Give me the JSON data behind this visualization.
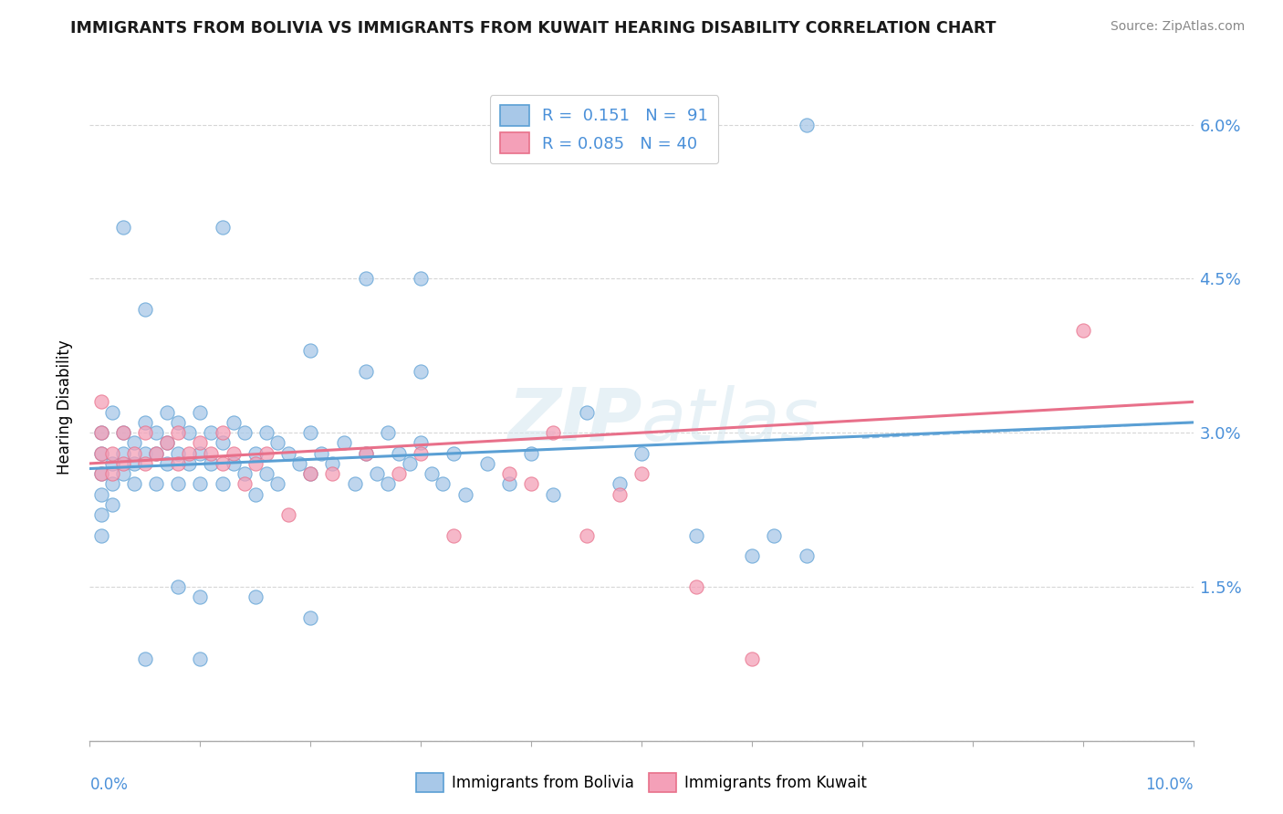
{
  "title": "IMMIGRANTS FROM BOLIVIA VS IMMIGRANTS FROM KUWAIT HEARING DISABILITY CORRELATION CHART",
  "source": "Source: ZipAtlas.com",
  "ylabel": "Hearing Disability",
  "xmin": 0.0,
  "xmax": 0.1,
  "ymin": 0.0,
  "ymax": 0.065,
  "yticks": [
    0.0,
    0.015,
    0.03,
    0.045,
    0.06
  ],
  "ytick_labels": [
    "",
    "1.5%",
    "3.0%",
    "4.5%",
    "6.0%"
  ],
  "color_bolivia": "#a8c8e8",
  "color_kuwait": "#f4a0b8",
  "color_bolivia_line": "#5a9fd4",
  "color_kuwait_line": "#e8708a",
  "watermark_text": "ZIPatlas",
  "bolivia_x": [
    0.001,
    0.001,
    0.001,
    0.001,
    0.001,
    0.001,
    0.002,
    0.002,
    0.002,
    0.002,
    0.003,
    0.003,
    0.003,
    0.004,
    0.004,
    0.004,
    0.005,
    0.005,
    0.006,
    0.006,
    0.006,
    0.007,
    0.007,
    0.007,
    0.008,
    0.008,
    0.008,
    0.009,
    0.009,
    0.01,
    0.01,
    0.01,
    0.011,
    0.011,
    0.012,
    0.012,
    0.013,
    0.013,
    0.014,
    0.014,
    0.015,
    0.015,
    0.016,
    0.016,
    0.017,
    0.017,
    0.018,
    0.019,
    0.02,
    0.02,
    0.021,
    0.022,
    0.023,
    0.024,
    0.025,
    0.026,
    0.027,
    0.027,
    0.028,
    0.029,
    0.03,
    0.031,
    0.032,
    0.033,
    0.034,
    0.036,
    0.038,
    0.04,
    0.042,
    0.045,
    0.048,
    0.05,
    0.055,
    0.06,
    0.062,
    0.065,
    0.02,
    0.025,
    0.03,
    0.01,
    0.008,
    0.003,
    0.005,
    0.012,
    0.015,
    0.02,
    0.025,
    0.03,
    0.01,
    0.005,
    0.065
  ],
  "bolivia_y": [
    0.028,
    0.03,
    0.026,
    0.024,
    0.022,
    0.02,
    0.032,
    0.027,
    0.025,
    0.023,
    0.03,
    0.028,
    0.026,
    0.029,
    0.027,
    0.025,
    0.031,
    0.028,
    0.03,
    0.028,
    0.025,
    0.032,
    0.029,
    0.027,
    0.031,
    0.028,
    0.025,
    0.03,
    0.027,
    0.032,
    0.028,
    0.025,
    0.03,
    0.027,
    0.029,
    0.025,
    0.031,
    0.027,
    0.03,
    0.026,
    0.028,
    0.024,
    0.03,
    0.026,
    0.029,
    0.025,
    0.028,
    0.027,
    0.03,
    0.026,
    0.028,
    0.027,
    0.029,
    0.025,
    0.028,
    0.026,
    0.03,
    0.025,
    0.028,
    0.027,
    0.029,
    0.026,
    0.025,
    0.028,
    0.024,
    0.027,
    0.025,
    0.028,
    0.024,
    0.032,
    0.025,
    0.028,
    0.02,
    0.018,
    0.02,
    0.018,
    0.038,
    0.036,
    0.036,
    0.014,
    0.015,
    0.05,
    0.042,
    0.05,
    0.014,
    0.012,
    0.045,
    0.045,
    0.008,
    0.008,
    0.06
  ],
  "kuwait_x": [
    0.001,
    0.001,
    0.001,
    0.001,
    0.002,
    0.002,
    0.003,
    0.003,
    0.004,
    0.005,
    0.005,
    0.006,
    0.007,
    0.008,
    0.008,
    0.009,
    0.01,
    0.011,
    0.012,
    0.012,
    0.013,
    0.014,
    0.015,
    0.016,
    0.018,
    0.02,
    0.022,
    0.025,
    0.028,
    0.03,
    0.033,
    0.038,
    0.04,
    0.042,
    0.045,
    0.048,
    0.05,
    0.055,
    0.06,
    0.09
  ],
  "kuwait_y": [
    0.03,
    0.028,
    0.026,
    0.033,
    0.028,
    0.026,
    0.03,
    0.027,
    0.028,
    0.03,
    0.027,
    0.028,
    0.029,
    0.03,
    0.027,
    0.028,
    0.029,
    0.028,
    0.03,
    0.027,
    0.028,
    0.025,
    0.027,
    0.028,
    0.022,
    0.026,
    0.026,
    0.028,
    0.026,
    0.028,
    0.02,
    0.026,
    0.025,
    0.03,
    0.02,
    0.024,
    0.026,
    0.015,
    0.008,
    0.04
  ],
  "bolivia_line_x0": 0.0,
  "bolivia_line_x1": 0.1,
  "bolivia_line_y0": 0.0265,
  "bolivia_line_y1": 0.031,
  "kuwait_line_x0": 0.0,
  "kuwait_line_x1": 0.1,
  "kuwait_line_y0": 0.027,
  "kuwait_line_y1": 0.033
}
